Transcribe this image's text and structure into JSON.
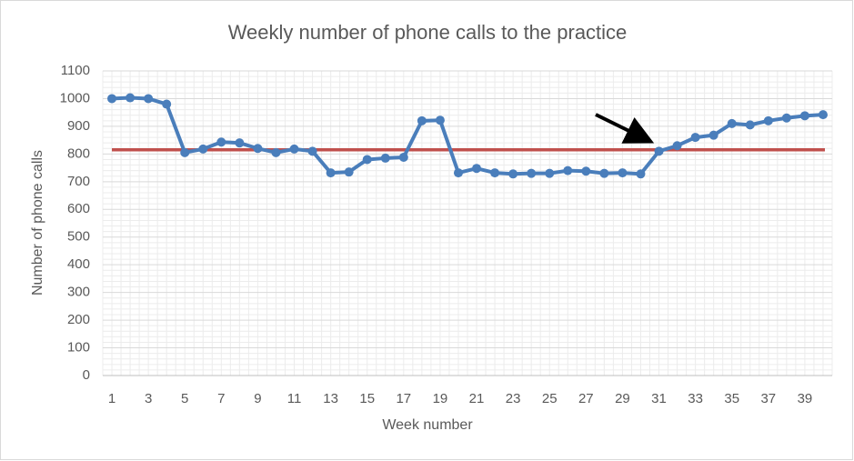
{
  "chart_data": {
    "type": "line",
    "title": "Weekly number of phone calls to the practice",
    "x_label": "Week number",
    "y_label": "Number of phone calls",
    "categories": [
      1,
      null,
      3,
      null,
      5,
      null,
      7,
      null,
      9,
      null,
      11,
      null,
      13,
      null,
      15,
      null,
      17,
      null,
      19,
      null,
      21,
      null,
      23,
      null,
      25,
      null,
      27,
      null,
      29,
      null,
      31,
      null,
      33,
      null,
      35,
      null,
      37,
      null,
      39,
      null
    ],
    "series": [
      {
        "color": "#4a7ebb",
        "values": [
          1000,
          1003,
          1000,
          980,
          805,
          818,
          843,
          840,
          820,
          805,
          818,
          810,
          732,
          735,
          780,
          785,
          788,
          920,
          922,
          732,
          748,
          732,
          728,
          730,
          730,
          740,
          738,
          730,
          732,
          728,
          810,
          830,
          860,
          868,
          910,
          905,
          920,
          930,
          938,
          942
        ]
      }
    ],
    "reference_line": {
      "value": 815,
      "color": "#c0504d"
    },
    "ylim": [
      0,
      1100
    ],
    "yticks": [
      0,
      100,
      200,
      300,
      400,
      500,
      600,
      700,
      800,
      900,
      1000,
      1100
    ],
    "grid": true
  }
}
